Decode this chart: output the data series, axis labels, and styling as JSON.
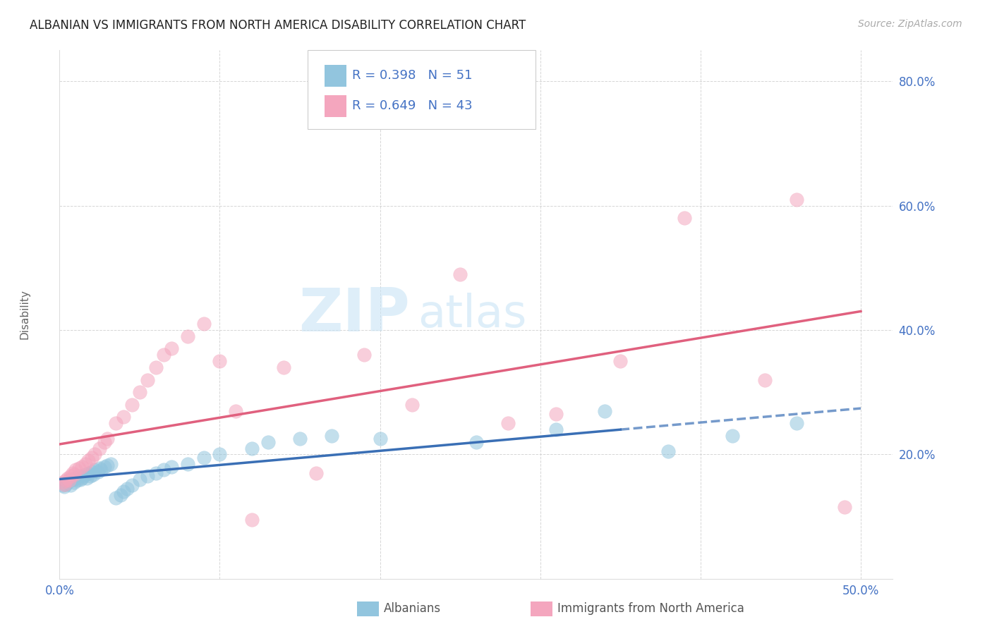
{
  "title": "ALBANIAN VS IMMIGRANTS FROM NORTH AMERICA DISABILITY CORRELATION CHART",
  "source": "Source: ZipAtlas.com",
  "ylabel": "Disability",
  "xlim": [
    0.0,
    0.5
  ],
  "ylim": [
    0.0,
    0.85
  ],
  "xticks": [
    0.0,
    0.1,
    0.2,
    0.3,
    0.4,
    0.5
  ],
  "yticks": [
    0.0,
    0.2,
    0.4,
    0.6,
    0.8
  ],
  "xticklabels": [
    "0.0%",
    "",
    "",
    "",
    "",
    "50.0%"
  ],
  "yticklabels": [
    "",
    "20.0%",
    "40.0%",
    "60.0%",
    "80.0%"
  ],
  "legend_label1": "Albanians",
  "legend_label2": "Immigrants from North America",
  "R1": "0.398",
  "N1": "51",
  "R2": "0.649",
  "N2": "43",
  "color1": "#92c5de",
  "color2": "#f4a6be",
  "line_color1": "#3a6fb5",
  "line_color2": "#e0607e",
  "watermark_zip": "ZIP",
  "watermark_atlas": "atlas",
  "albanians_x": [
    0.002,
    0.003,
    0.004,
    0.005,
    0.006,
    0.007,
    0.008,
    0.009,
    0.01,
    0.011,
    0.012,
    0.013,
    0.014,
    0.015,
    0.016,
    0.017,
    0.018,
    0.019,
    0.02,
    0.021,
    0.022,
    0.024,
    0.025,
    0.026,
    0.028,
    0.03,
    0.032,
    0.035,
    0.038,
    0.04,
    0.042,
    0.045,
    0.05,
    0.055,
    0.06,
    0.065,
    0.07,
    0.08,
    0.09,
    0.1,
    0.12,
    0.13,
    0.15,
    0.17,
    0.2,
    0.26,
    0.31,
    0.34,
    0.38,
    0.42,
    0.46
  ],
  "albanians_y": [
    0.15,
    0.148,
    0.152,
    0.155,
    0.158,
    0.15,
    0.16,
    0.155,
    0.162,
    0.158,
    0.165,
    0.16,
    0.162,
    0.165,
    0.168,
    0.162,
    0.17,
    0.165,
    0.172,
    0.168,
    0.175,
    0.172,
    0.178,
    0.175,
    0.18,
    0.182,
    0.185,
    0.13,
    0.135,
    0.14,
    0.145,
    0.15,
    0.16,
    0.165,
    0.17,
    0.175,
    0.18,
    0.185,
    0.195,
    0.2,
    0.21,
    0.22,
    0.225,
    0.23,
    0.225,
    0.22,
    0.24,
    0.27,
    0.205,
    0.23,
    0.25
  ],
  "immigrants_x": [
    0.002,
    0.003,
    0.004,
    0.005,
    0.006,
    0.007,
    0.008,
    0.009,
    0.01,
    0.012,
    0.014,
    0.016,
    0.018,
    0.02,
    0.022,
    0.025,
    0.028,
    0.03,
    0.035,
    0.04,
    0.045,
    0.05,
    0.055,
    0.06,
    0.065,
    0.07,
    0.08,
    0.09,
    0.1,
    0.11,
    0.12,
    0.14,
    0.16,
    0.19,
    0.22,
    0.25,
    0.28,
    0.31,
    0.35,
    0.39,
    0.44,
    0.46,
    0.49
  ],
  "immigrants_y": [
    0.155,
    0.152,
    0.158,
    0.162,
    0.158,
    0.165,
    0.17,
    0.168,
    0.175,
    0.178,
    0.18,
    0.185,
    0.19,
    0.195,
    0.2,
    0.21,
    0.22,
    0.225,
    0.25,
    0.26,
    0.28,
    0.3,
    0.32,
    0.34,
    0.36,
    0.37,
    0.39,
    0.41,
    0.35,
    0.27,
    0.095,
    0.34,
    0.17,
    0.36,
    0.28,
    0.49,
    0.25,
    0.265,
    0.35,
    0.58,
    0.32,
    0.61,
    0.115
  ]
}
